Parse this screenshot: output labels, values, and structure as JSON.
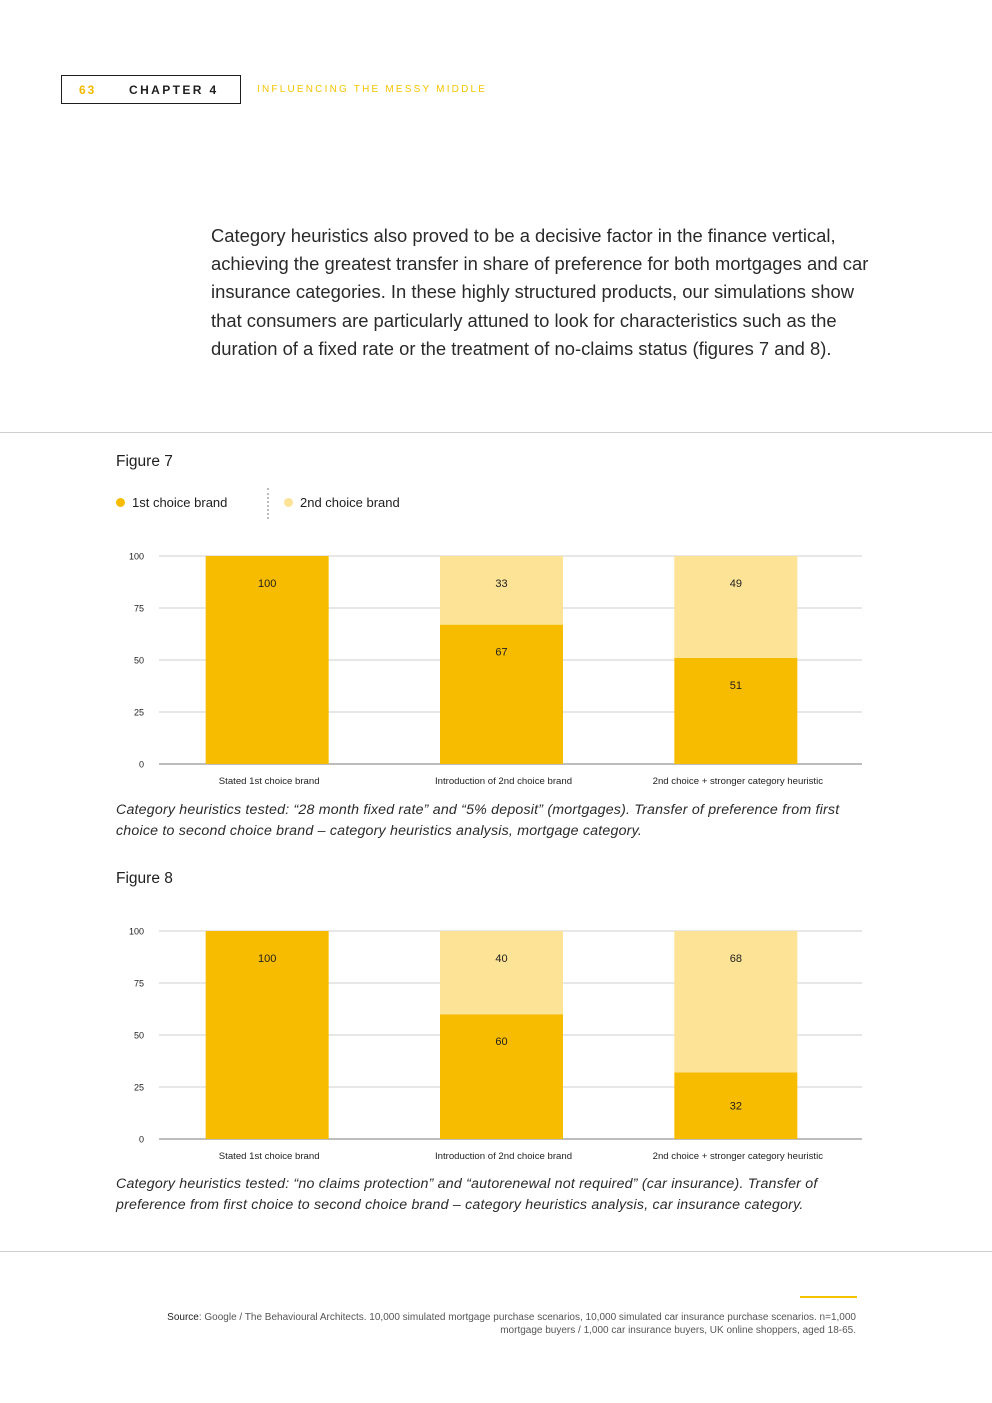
{
  "header": {
    "page_number": "63",
    "chapter": "CHAPTER 4",
    "chapter_title": "INFLUENCING THE MESSY MIDDLE"
  },
  "intro": "Category heuristics also proved to be a decisive factor in the finance vertical, achieving the greatest transfer in share of preference for both mortgages and car insurance categories. In these highly structured products, our simulations show that consumers are particularly attuned to look for characteristics such as the duration of a fixed rate or the treatment of no-claims status (figures 7 and 8).",
  "legend": {
    "first": "1st choice brand",
    "second": "2nd choice brand"
  },
  "colors": {
    "first": "#f7bc00",
    "second": "#fce396",
    "accent": "#f5c400"
  },
  "figures": [
    {
      "title": "Figure 7",
      "caption": "Category heuristics tested: “28 month fixed rate” and “5% deposit” (mortgages). Transfer of preference from first choice to second choice brand – category heuristics analysis, mortgage category."
    },
    {
      "title": "Figure 8",
      "caption": "Category heuristics tested: “no claims protection” and “autorenewal not required” (car insurance). Transfer of preference from first choice to second choice brand – category heuristics analysis, car insurance category."
    }
  ],
  "chart_data": [
    {
      "type": "bar",
      "stacked": true,
      "title": "Figure 7",
      "categories": [
        "Stated 1st choice brand",
        "Introduction of 2nd choice brand",
        "2nd choice + stronger category heuristic"
      ],
      "series": [
        {
          "name": "1st choice brand",
          "values": [
            100,
            67,
            51
          ]
        },
        {
          "name": "2nd choice brand",
          "values": [
            0,
            33,
            49
          ]
        }
      ],
      "yticks": [
        0,
        25,
        50,
        75,
        100
      ],
      "ylim": [
        0,
        100
      ],
      "grid": true,
      "legend": "top-left"
    },
    {
      "type": "bar",
      "stacked": true,
      "title": "Figure 8",
      "categories": [
        "Stated 1st choice brand",
        "Introduction of 2nd choice brand",
        "2nd choice + stronger category heuristic"
      ],
      "series": [
        {
          "name": "1st choice brand",
          "values": [
            100,
            60,
            32
          ]
        },
        {
          "name": "2nd choice brand",
          "values": [
            0,
            40,
            68
          ]
        }
      ],
      "yticks": [
        0,
        25,
        50,
        75,
        100
      ],
      "ylim": [
        0,
        100
      ],
      "grid": true
    }
  ],
  "source": {
    "label": "Source",
    "text": ": Google / The Behavioural Architects. 10,000 simulated mortgage purchase scenarios, 10,000 simulated car insurance purchase scenarios. n=1,000 mortgage buyers / 1,000 car insurance buyers, UK online shoppers, aged 18-65."
  }
}
